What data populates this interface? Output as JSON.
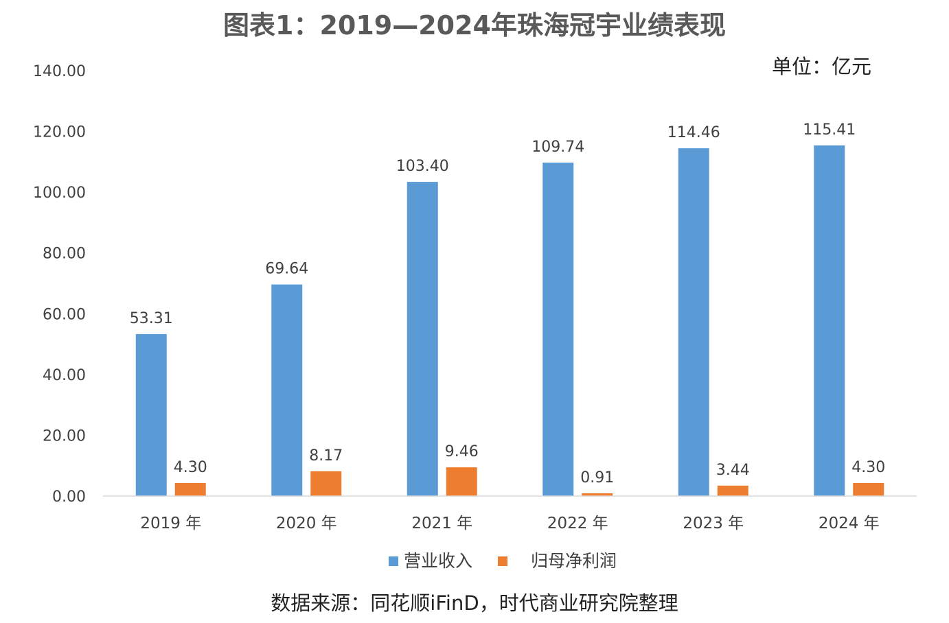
{
  "title": "图表1：2019—2024年珠海冠宇业绩表现",
  "unit_label": "单位：亿元",
  "source_label": "数据来源：同花顺iFinD，时代商业研究院整理",
  "chart_data": {
    "type": "bar",
    "categories": [
      "2019 年",
      "2020 年",
      "2021 年",
      "2022 年",
      "2023 年",
      "2024 年"
    ],
    "series": [
      {
        "name": "营业收入",
        "color": "#5B9BD5",
        "values": [
          53.31,
          69.64,
          103.4,
          109.74,
          114.46,
          115.41
        ],
        "labels": [
          "53.31",
          "69.64",
          "103.40",
          "109.74",
          "114.46",
          "115.41"
        ]
      },
      {
        "name": "归母净利润",
        "color": "#ED7D31",
        "values": [
          4.3,
          8.17,
          9.46,
          0.91,
          3.44,
          4.3
        ],
        "labels": [
          "4.30",
          "8.17",
          "9.46",
          "0.91",
          "3.44",
          "4.30"
        ]
      }
    ],
    "yticks": [
      "0.00",
      "20.00",
      "40.00",
      "60.00",
      "80.00",
      "100.00",
      "120.00",
      "140.00"
    ],
    "ylim": [
      0,
      140
    ],
    "grid": false,
    "legend_position": "bottom"
  }
}
